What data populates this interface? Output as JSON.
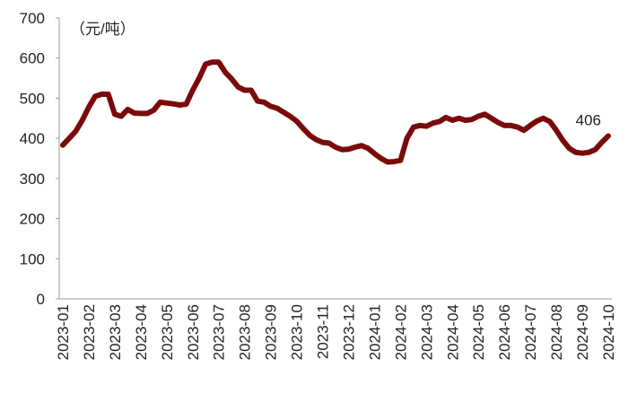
{
  "chart_data": {
    "type": "line",
    "y_label": "（元/吨）",
    "categories": [
      "2023-01",
      null,
      null,
      null,
      "2023-02",
      null,
      null,
      null,
      "2023-03",
      null,
      null,
      null,
      "2023-04",
      null,
      null,
      null,
      "2023-05",
      null,
      null,
      null,
      "2023-06",
      null,
      null,
      null,
      "2023-07",
      null,
      null,
      null,
      "2023-08",
      null,
      null,
      null,
      "2023-09",
      null,
      null,
      null,
      "2023-10",
      null,
      null,
      null,
      "2023-11",
      null,
      null,
      null,
      "2023-12",
      null,
      null,
      null,
      "2024-01",
      null,
      null,
      null,
      "2024-02",
      null,
      null,
      null,
      "2024-03",
      null,
      null,
      null,
      "2024-04",
      null,
      null,
      null,
      "2024-05",
      null,
      null,
      null,
      "2024-06",
      null,
      null,
      null,
      "2024-07",
      null,
      null,
      null,
      "2024-08",
      null,
      null,
      null,
      "2024-09",
      null,
      null,
      null,
      "2024-10"
    ],
    "values": [
      383,
      400,
      418,
      445,
      478,
      505,
      510,
      510,
      460,
      455,
      472,
      463,
      462,
      462,
      470,
      490,
      488,
      486,
      483,
      485,
      520,
      550,
      585,
      590,
      590,
      565,
      548,
      528,
      520,
      520,
      493,
      490,
      480,
      475,
      465,
      455,
      443,
      425,
      408,
      397,
      390,
      388,
      378,
      372,
      373,
      378,
      382,
      375,
      362,
      350,
      341,
      342,
      345,
      400,
      428,
      432,
      430,
      438,
      442,
      452,
      445,
      450,
      445,
      447,
      455,
      460,
      450,
      440,
      432,
      432,
      428,
      420,
      432,
      443,
      450,
      442,
      420,
      395,
      375,
      365,
      363,
      365,
      372,
      390,
      406
    ],
    "color": "#7a0a0a",
    "ylim": [
      0,
      700
    ],
    "yticks": [
      0,
      100,
      200,
      300,
      400,
      500,
      600,
      700
    ]
  }
}
